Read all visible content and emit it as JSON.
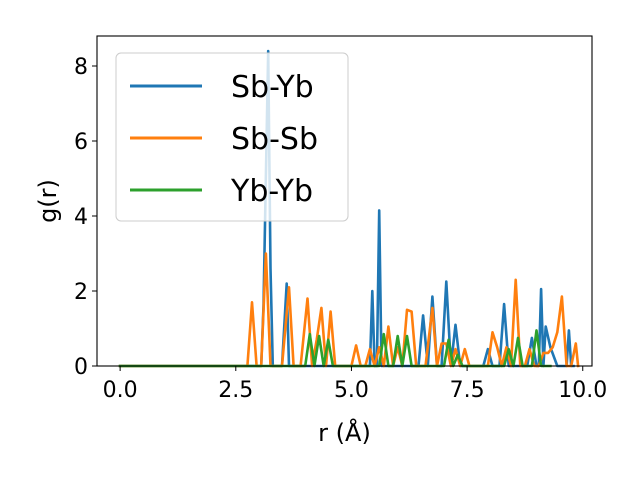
{
  "chart_data": {
    "type": "line",
    "xlabel": "r (Å)",
    "ylabel": "g(r)",
    "xlim": [
      -0.5,
      10.2
    ],
    "ylim": [
      0,
      8.8
    ],
    "xticks": [
      0.0,
      2.5,
      5.0,
      7.5,
      10.0
    ],
    "xtick_labels": [
      "0.0",
      "2.5",
      "5.0",
      "7.5",
      "10.0"
    ],
    "yticks": [
      0,
      2,
      4,
      6,
      8
    ],
    "ytick_labels": [
      "0",
      "2",
      "4",
      "6",
      "8"
    ],
    "grid": false,
    "legend_position": "upper-left",
    "series": [
      {
        "name": "Sb-Yb",
        "color": "#1f77b4",
        "x": [
          0.0,
          2.8,
          3.05,
          3.1,
          3.2,
          3.25,
          3.3,
          3.35,
          3.5,
          3.6,
          3.65,
          3.75,
          4.0,
          5.3,
          5.4,
          5.45,
          5.5,
          5.55,
          5.6,
          5.65,
          5.75,
          6.2,
          6.45,
          6.55,
          6.65,
          6.75,
          6.85,
          6.95,
          7.05,
          7.15,
          7.25,
          7.35,
          7.45,
          7.55,
          7.85,
          7.95,
          8.05,
          8.2,
          8.3,
          8.4,
          8.5,
          8.65,
          8.8,
          8.9,
          9.0,
          9.05,
          9.1,
          9.15,
          9.2,
          9.3,
          9.45,
          9.55,
          9.65,
          9.7,
          9.75,
          9.8
        ],
        "y": [
          0.0,
          0.0,
          0.0,
          1.6,
          8.4,
          2.6,
          0.0,
          0.0,
          0.0,
          2.2,
          0.0,
          0.0,
          0.0,
          0.0,
          0.0,
          2.0,
          0.0,
          0.0,
          4.15,
          0.0,
          0.0,
          0.0,
          0.0,
          1.35,
          0.0,
          1.85,
          0.0,
          0.0,
          2.25,
          0.0,
          1.1,
          0.0,
          0.0,
          0.0,
          0.0,
          0.45,
          0.0,
          0.0,
          1.65,
          0.0,
          0.0,
          0.0,
          0.0,
          0.75,
          0.0,
          0.0,
          2.05,
          0.0,
          1.05,
          0.5,
          0.0,
          0.0,
          0.0,
          0.95,
          0.0,
          0.0
        ]
      },
      {
        "name": "Sb-Sb",
        "color": "#ff7f0e",
        "x": [
          0.0,
          2.75,
          2.85,
          2.95,
          3.05,
          3.15,
          3.25,
          3.35,
          3.5,
          3.65,
          3.75,
          3.9,
          4.05,
          4.15,
          4.25,
          4.35,
          4.45,
          4.55,
          4.65,
          4.75,
          5.0,
          5.1,
          5.2,
          5.3,
          5.4,
          5.5,
          5.6,
          5.7,
          5.8,
          5.9,
          6.0,
          6.1,
          6.2,
          6.3,
          6.4,
          6.5,
          6.6,
          6.75,
          6.85,
          6.95,
          7.05,
          7.15,
          7.25,
          7.35,
          7.45,
          7.55,
          7.65,
          7.75,
          7.85,
          7.95,
          8.05,
          8.15,
          8.25,
          8.35,
          8.45,
          8.55,
          8.65,
          8.75,
          8.85,
          8.95,
          9.05,
          9.15,
          9.25,
          9.35,
          9.45,
          9.55,
          9.65,
          9.75,
          9.85,
          9.9
        ],
        "y": [
          0.0,
          0.0,
          1.7,
          0.0,
          0.0,
          3.0,
          0.0,
          0.0,
          0.0,
          2.1,
          0.0,
          0.0,
          1.8,
          0.0,
          0.7,
          1.55,
          0.0,
          1.45,
          0.0,
          0.0,
          0.0,
          0.55,
          0.0,
          0.0,
          0.45,
          0.0,
          0.5,
          0.0,
          1.05,
          0.0,
          0.5,
          0.0,
          1.5,
          1.45,
          0.0,
          0.0,
          0.0,
          1.55,
          0.0,
          0.6,
          0.6,
          0.0,
          0.45,
          0.0,
          0.45,
          0.0,
          0.0,
          0.0,
          0.0,
          0.0,
          0.9,
          0.5,
          0.0,
          0.5,
          0.0,
          2.3,
          0.0,
          0.0,
          0.45,
          0.0,
          0.0,
          0.35,
          0.35,
          0.5,
          0.9,
          1.85,
          0.0,
          0.0,
          0.6,
          0.0
        ]
      },
      {
        "name": "Yb-Yb",
        "color": "#2ca02c",
        "x": [
          0.0,
          3.8,
          4.0,
          4.1,
          4.2,
          4.3,
          4.4,
          4.5,
          4.6,
          5.6,
          5.7,
          5.8,
          5.9,
          6.0,
          6.1,
          6.2,
          6.3,
          6.4,
          6.5,
          7.0,
          7.1,
          7.2,
          7.3,
          7.4,
          7.5,
          8.2,
          8.3,
          8.4,
          8.5,
          8.6,
          8.7,
          8.8,
          8.9,
          9.0,
          9.1,
          9.2,
          9.3
        ],
        "y": [
          0.0,
          0.0,
          0.0,
          0.85,
          0.0,
          0.8,
          0.0,
          0.7,
          0.0,
          0.0,
          0.85,
          0.0,
          0.0,
          0.8,
          0.0,
          0.8,
          0.0,
          0.0,
          0.0,
          0.0,
          0.7,
          0.0,
          0.3,
          0.0,
          0.0,
          0.0,
          0.0,
          0.45,
          0.0,
          0.75,
          0.0,
          0.0,
          0.0,
          0.95,
          0.0,
          0.0,
          0.0
        ]
      }
    ]
  }
}
